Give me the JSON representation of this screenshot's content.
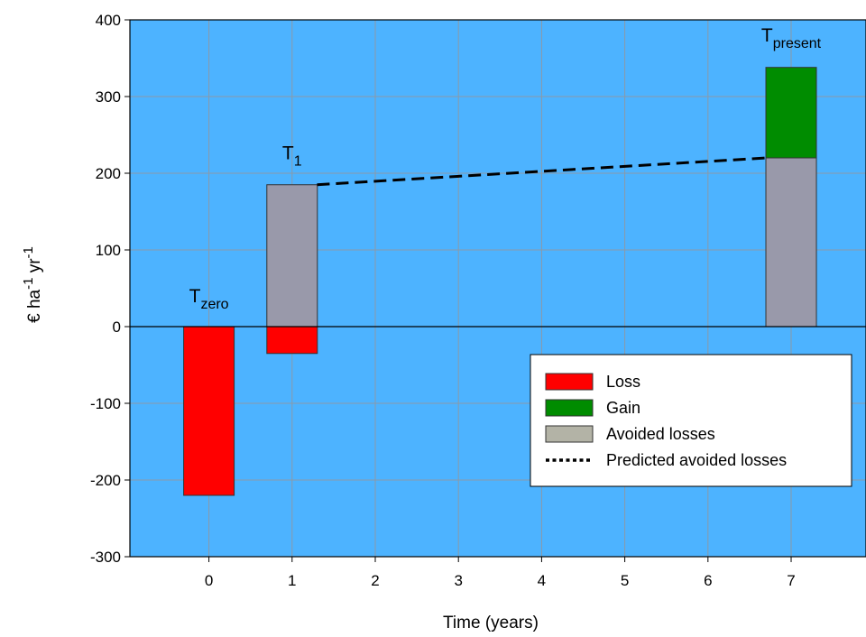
{
  "chart_data": {
    "type": "bar",
    "xlabel": "Time (years)",
    "ylabel": {
      "base": "€ ha",
      "sup1": "-1",
      "mid": " yr",
      "sup2": "-1"
    },
    "x_ticks": [
      0,
      1,
      2,
      3,
      4,
      5,
      6,
      7
    ],
    "y_ticks": [
      -300,
      -200,
      -100,
      0,
      100,
      200,
      300,
      400
    ],
    "xlim": [
      -0.95,
      7.9
    ],
    "ylim": [
      -300,
      400
    ],
    "grid": true,
    "colors": {
      "plot_background": "#4db3ff",
      "grid": "#8a9aa8",
      "loss": "#ff0000",
      "gain": "#008c00",
      "avoided": "#9999aa",
      "legend_avoided_swatch": "#b3b3a6",
      "dashed_line": "#000000"
    },
    "bars": [
      {
        "x": 0,
        "series": "Loss",
        "bottom": -220,
        "top": 0
      },
      {
        "x": 1,
        "series": "Loss",
        "bottom": -35,
        "top": 0
      },
      {
        "x": 1,
        "series": "Avoided losses",
        "bottom": 0,
        "top": 185
      },
      {
        "x": 7,
        "series": "Avoided losses",
        "bottom": 0,
        "top": 220
      },
      {
        "x": 7,
        "series": "Gain",
        "bottom": 220,
        "top": 338
      }
    ],
    "predicted_line": {
      "x": [
        1.3,
        6.7
      ],
      "y": [
        185,
        220
      ]
    },
    "annotations": [
      {
        "id": "tzero",
        "base": "T",
        "sub": "zero",
        "x": 0,
        "y": 8
      },
      {
        "id": "t1",
        "base": "T",
        "sub": "1",
        "x": 1,
        "y": 195
      },
      {
        "id": "tpresent",
        "base": "T",
        "sub": "present",
        "x": 7,
        "y": 348
      }
    ],
    "legend": {
      "position": "bottom-right",
      "items": [
        {
          "label": "Loss",
          "kind": "swatch",
          "color": "#ff0000"
        },
        {
          "label": "Gain",
          "kind": "swatch",
          "color": "#008c00"
        },
        {
          "label": "Avoided losses",
          "kind": "swatch",
          "color": "#b3b3a6"
        },
        {
          "label": "Predicted avoided losses",
          "kind": "dotted-line",
          "color": "#000000"
        }
      ]
    }
  }
}
